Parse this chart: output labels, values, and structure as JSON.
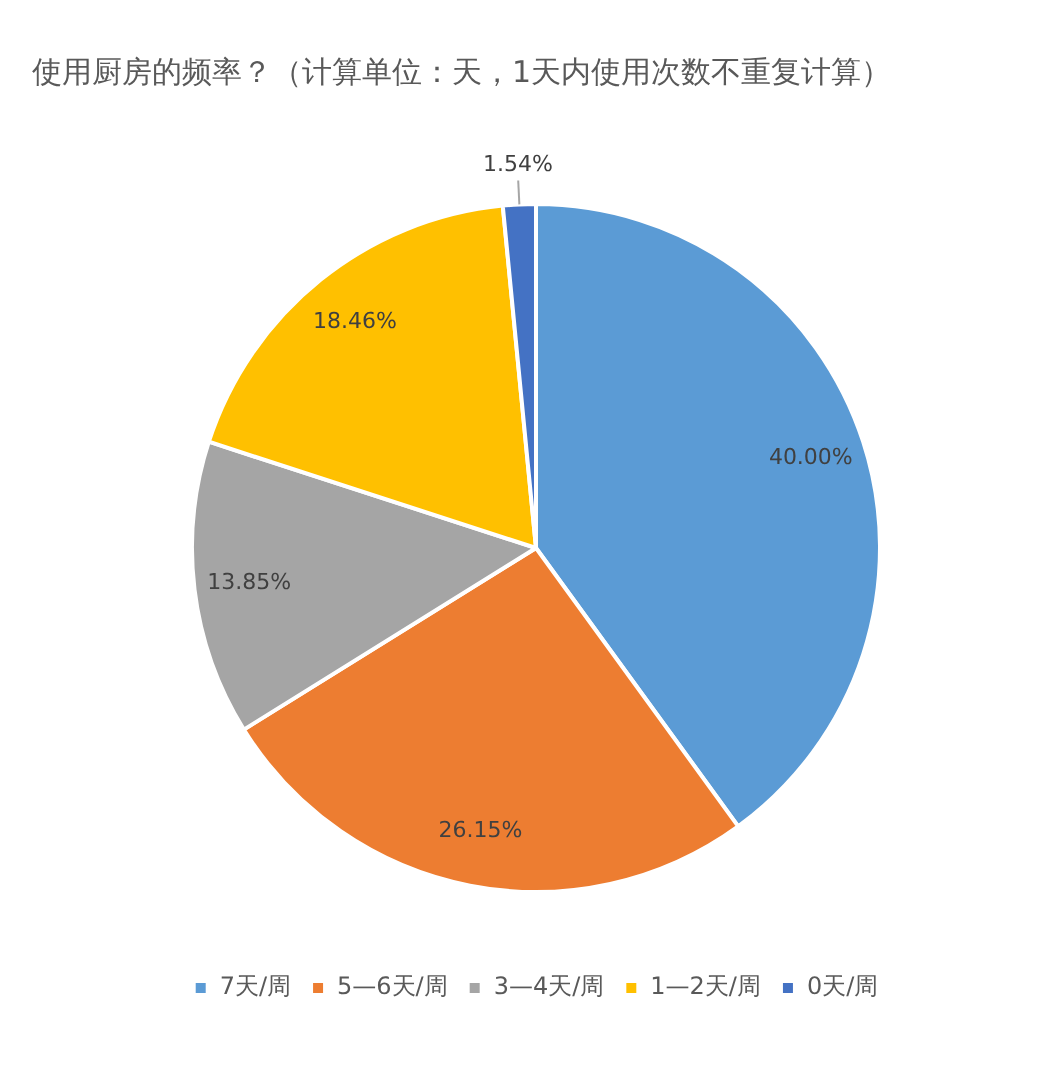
{
  "chart_data": {
    "type": "pie",
    "title": "使用厨房的频率？（计算单位：天，1天内使用次数不重复计算）",
    "categories": [
      "7天/周",
      "5—6天/周",
      "3—4天/周",
      "1—2天/周",
      "0天/周"
    ],
    "values": [
      40.0,
      26.15,
      13.85,
      18.46,
      1.54
    ],
    "colors": [
      "#5b9bd5",
      "#ed7d31",
      "#a5a5a5",
      "#ffc000",
      "#4472c4"
    ],
    "value_labels": [
      "40.00%",
      "26.15%",
      "13.85%",
      "18.46%",
      "1.54%"
    ],
    "legend": "bottom"
  }
}
